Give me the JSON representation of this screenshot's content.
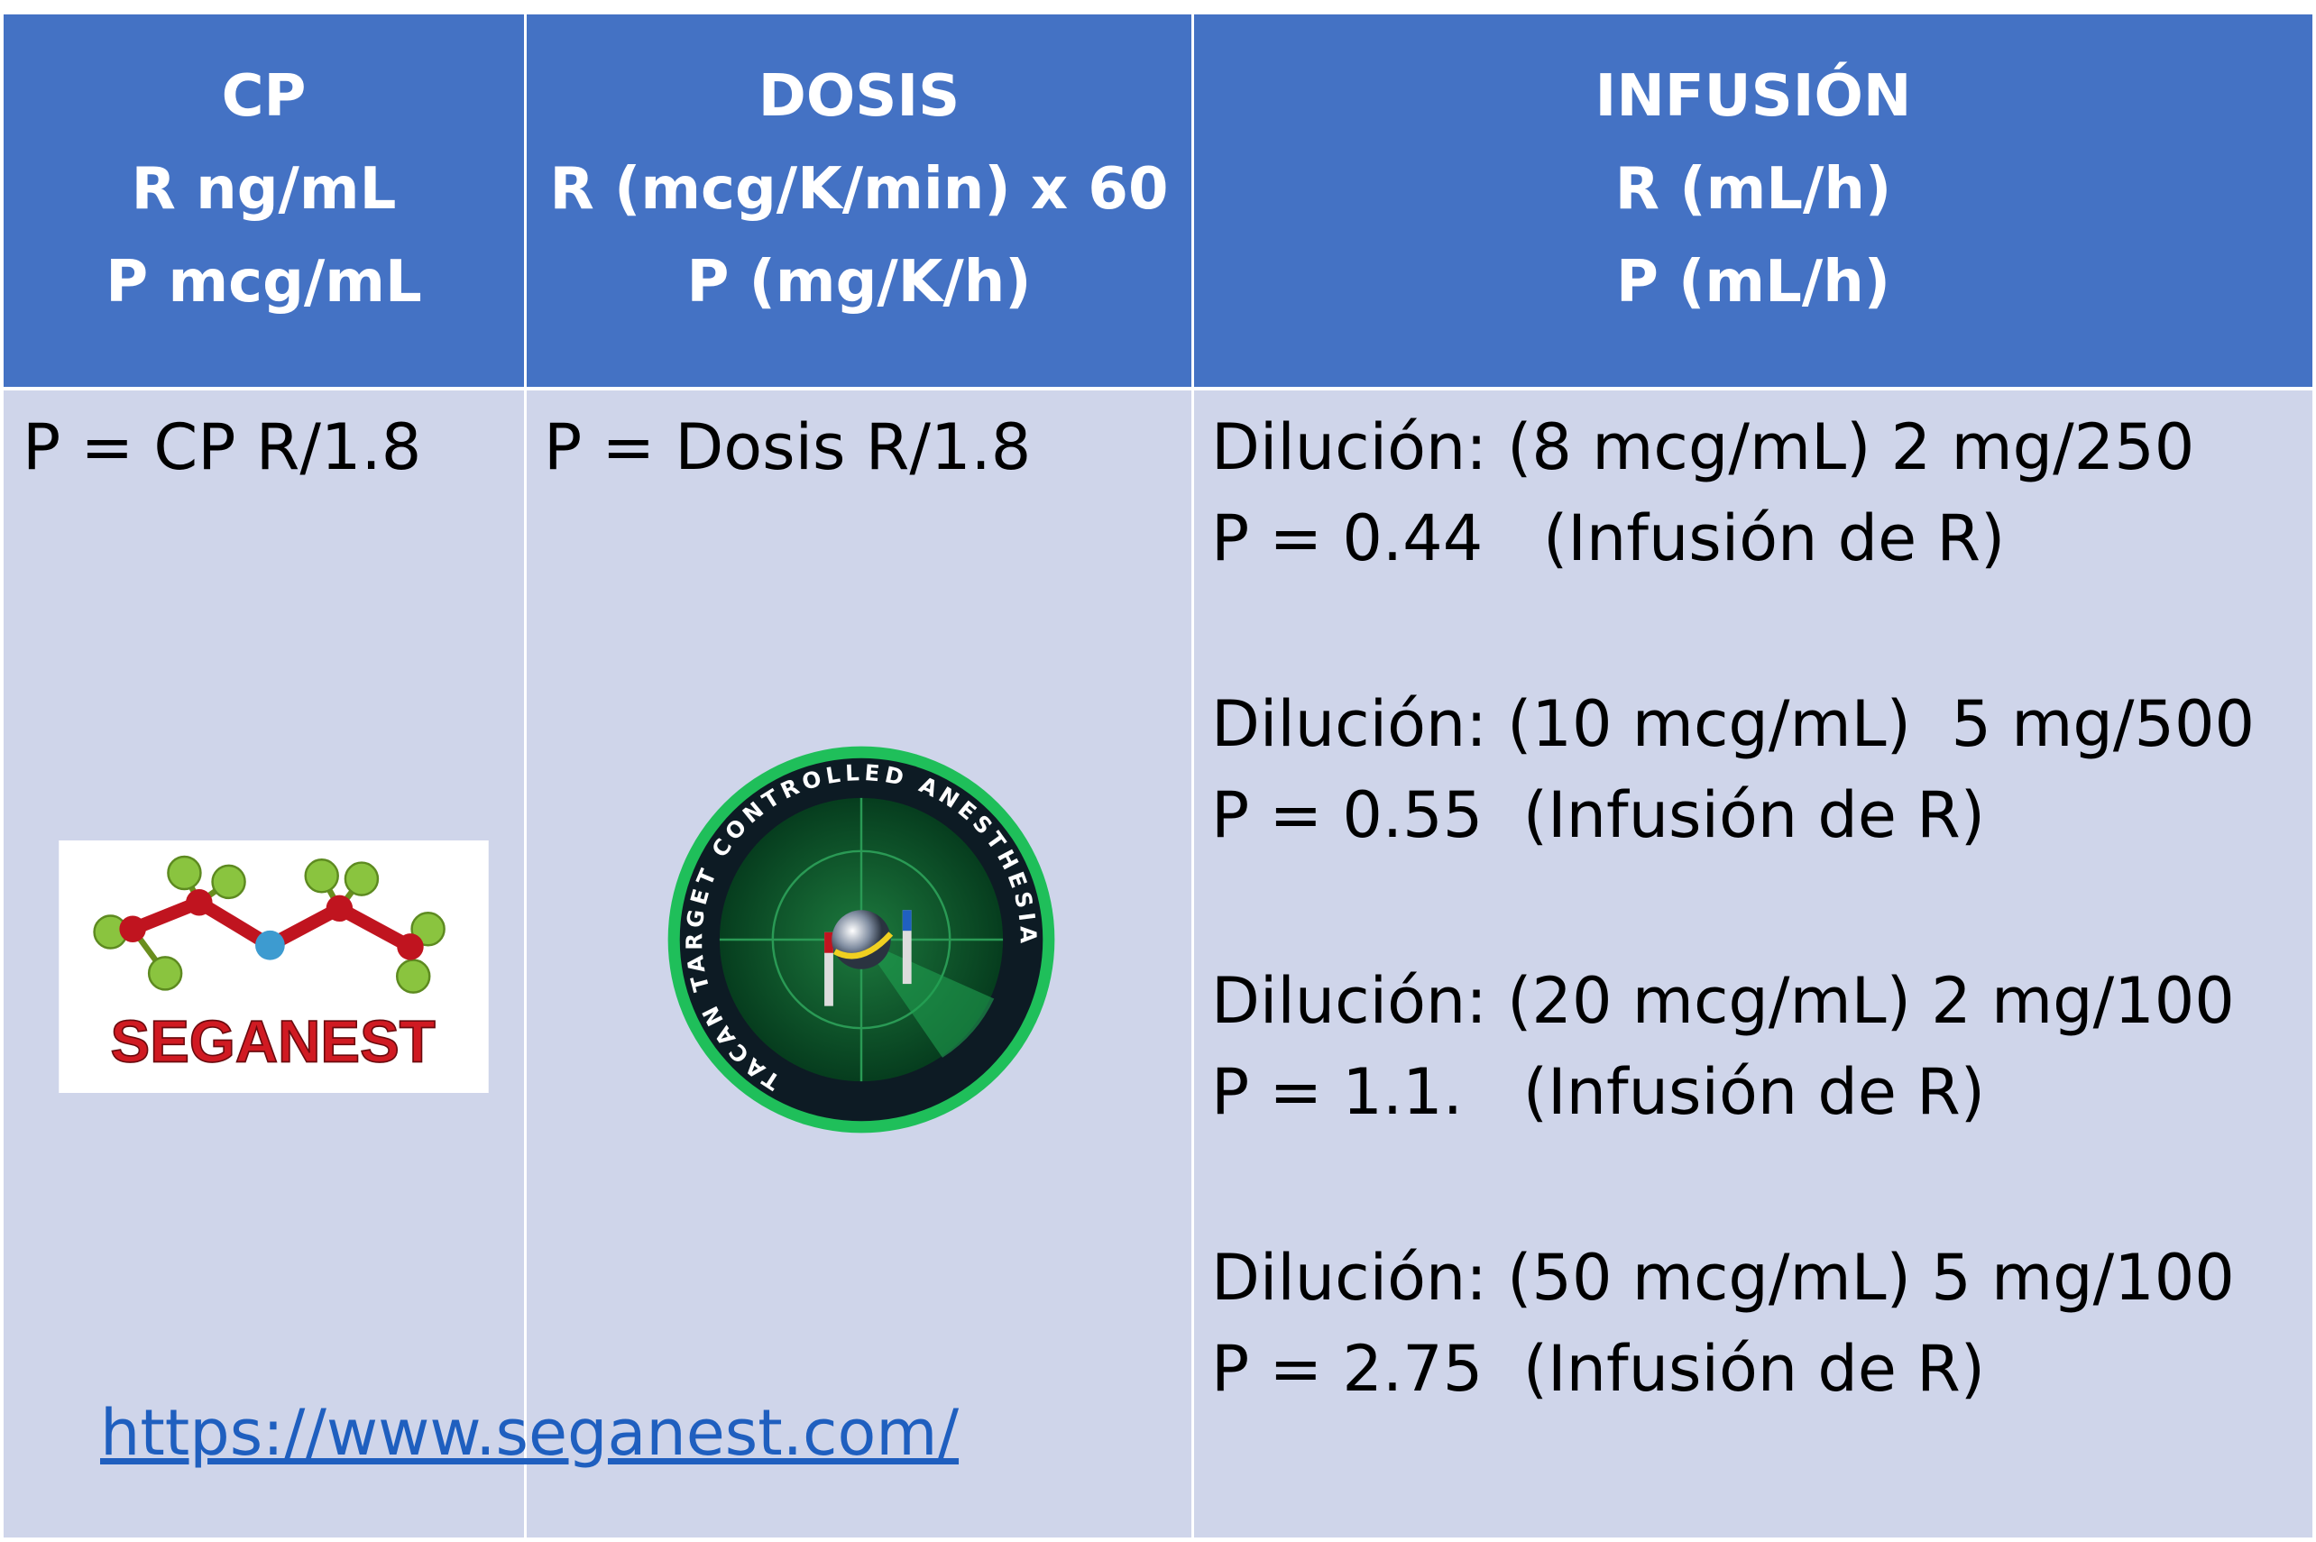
{
  "header": [
    [
      "CP",
      "R ng/mL",
      "P mcg/mL"
    ],
    [
      "DOSIS",
      "R (mcg/K/min) x 60",
      "P (mg/K/h)"
    ],
    [
      "INFUSIÓN",
      "R (mL/h)",
      "P (mL/h)"
    ]
  ],
  "body": {
    "col0": "P = CP R/1.8",
    "col1": "P = Dosis R/1.8",
    "col2": [
      [
        "Dilución: (8 mcg/mL) 2 mg/250",
        "P = 0.44   (Infusión de R)"
      ],
      [
        "Dilución: (10 mcg/mL)  5 mg/500",
        "P = 0.55  (Infusión de R)"
      ],
      [
        "Dilución: (20 mcg/mL) 2 mg/100",
        "P = 1.1.   (Infusión de R)"
      ],
      [
        "Dilución: (50 mcg/mL) 5 mg/100",
        "P = 2.75  (Infusión de R)"
      ]
    ]
  },
  "logos": {
    "seganest": "SEGANEST",
    "tacan": "TACAN TARGET CONTROLLED ANESTHESIA"
  },
  "link": "https://www.seganest.com/"
}
